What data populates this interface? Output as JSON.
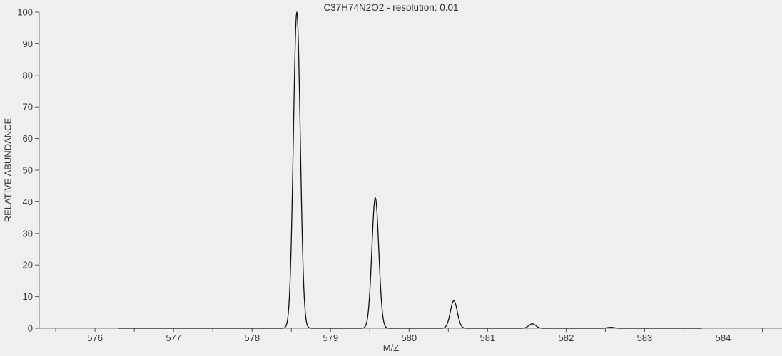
{
  "chart_data": {
    "type": "line",
    "title": "C37H74N2O2 - resolution: 0.01",
    "xlabel": "M/Z",
    "ylabel": "RELATIVE ABUNDANCE",
    "xlim": [
      575.29,
      584.75
    ],
    "ylim": [
      0,
      100
    ],
    "x_major_ticks": [
      576,
      577,
      578,
      579,
      580,
      581,
      582,
      583,
      584
    ],
    "x_minor_tick_start": 575.5,
    "x_minor_tick_end": 584.5,
    "x_minor_tick_step": 0.5,
    "y_ticks": [
      0,
      10,
      20,
      30,
      40,
      50,
      60,
      70,
      80,
      90,
      100
    ],
    "grid": false,
    "legend": false,
    "background_color": "#efefef",
    "axis_color": "#777777",
    "tick_color": "#555555",
    "line_color": "#111111",
    "series": [
      {
        "name": "isotope-pattern",
        "data_x_range": [
          576.29,
          583.73
        ],
        "peak_sigma_mz": 0.044,
        "peaks": [
          {
            "mz": 578.57,
            "intensity": 100
          },
          {
            "mz": 579.57,
            "intensity": 41.3
          },
          {
            "mz": 580.57,
            "intensity": 8.7
          },
          {
            "mz": 581.57,
            "intensity": 1.4
          },
          {
            "mz": 582.57,
            "intensity": 0.3
          }
        ]
      }
    ]
  }
}
